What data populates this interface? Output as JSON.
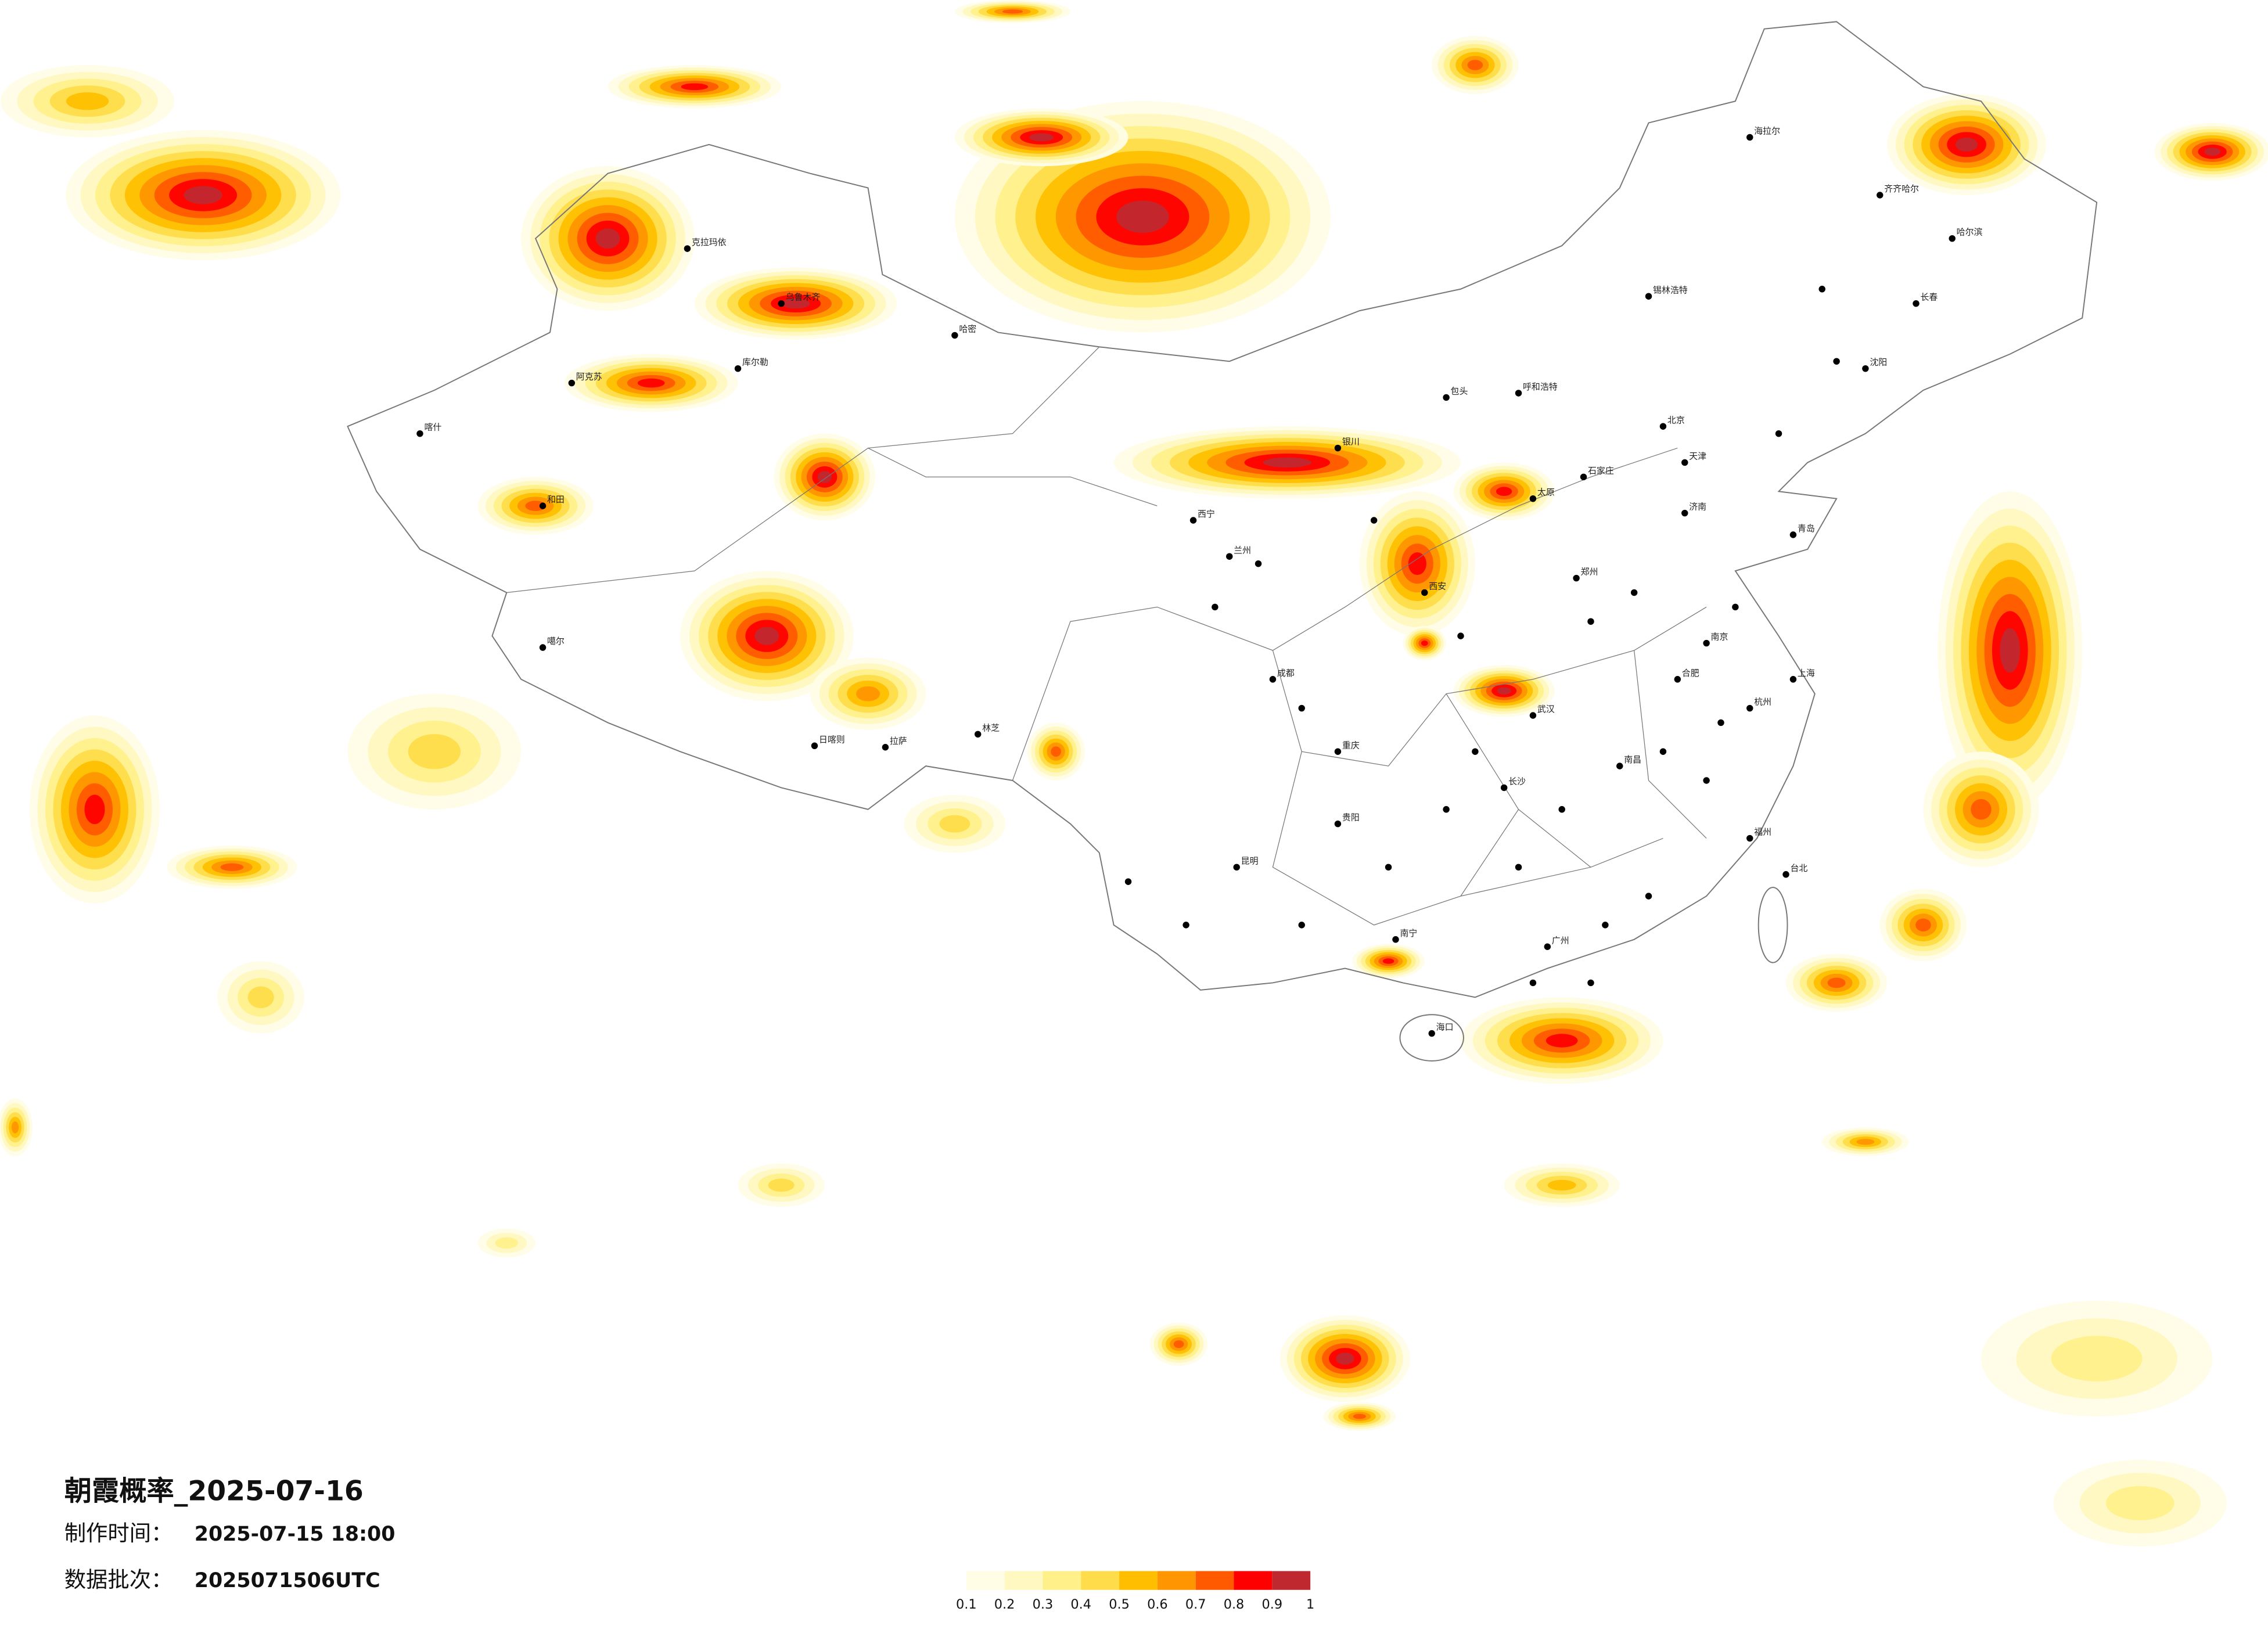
{
  "title": "朝霞概率_2025-07-16",
  "made_time": {
    "label": "制作时间：",
    "value": "2025-07-15 18:00"
  },
  "batch": {
    "label": "数据批次：",
    "value": "2025071506UTC"
  },
  "colorbar": {
    "colors": [
      "#fffde6",
      "#fff8c0",
      "#fff08a",
      "#ffdc4a",
      "#ffbf00",
      "#ff9500",
      "#ff5a00",
      "#ff0000",
      "#c0282f"
    ],
    "ticks": [
      0.1,
      0.2,
      0.3,
      0.4,
      0.5,
      0.6,
      0.7,
      0.8,
      0.9,
      1
    ]
  },
  "cities": [
    "喀什",
    "和田",
    "阿克苏",
    "库尔勒",
    "乌鲁木齐",
    "克拉玛依",
    "哈密",
    "噶尔",
    "日喀则",
    "拉萨",
    "林芝",
    "西宁",
    "兰州",
    "银川",
    "呼和浩特",
    "包头",
    "北京",
    "天津",
    "石家庄",
    "太原",
    "西安",
    "郑州",
    "济南",
    "青岛",
    "南京",
    "上海",
    "杭州",
    "武汉",
    "合肥",
    "成都",
    "重庆",
    "贵阳",
    "昆明",
    "南宁",
    "广州",
    "福州",
    "长沙",
    "南昌",
    "台北",
    "海口",
    "哈尔滨",
    "长春",
    "沈阳",
    "齐齐哈尔",
    "海拉尔",
    "锡林浩特"
  ]
}
